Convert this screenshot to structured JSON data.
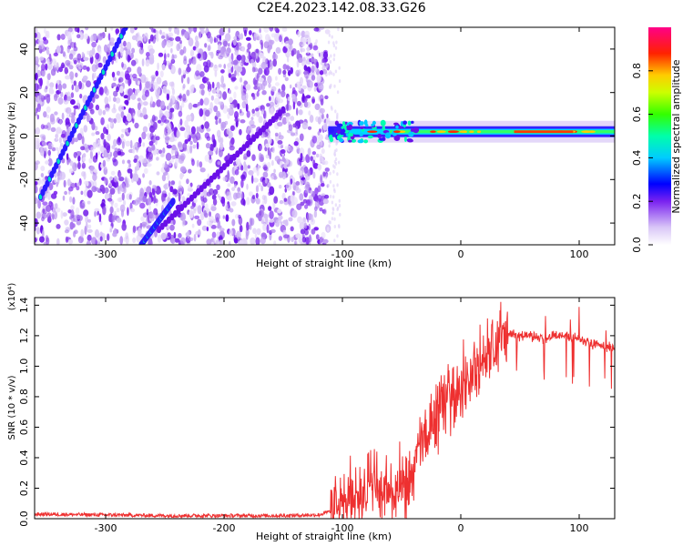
{
  "title": "C2E4.2023.142.08.33.G26",
  "chart_data": [
    {
      "type": "heatmap",
      "xlabel": "Height of straight line (km)",
      "ylabel": "Frequency (Hz)",
      "xlim": [
        -360,
        130
      ],
      "ylim": [
        -50,
        50
      ],
      "x_ticks": [
        -300,
        -200,
        -100,
        0,
        100
      ],
      "y_ticks": [
        -40,
        -20,
        0,
        20,
        40
      ],
      "colorbar": {
        "label": "Normalized spectral amplitude",
        "ticks": [
          0.0,
          0.2,
          0.4,
          0.6,
          0.8
        ],
        "range": [
          0,
          1
        ]
      },
      "features": {
        "noise_region_x": [
          -360,
          -112
        ],
        "steady_band_x": [
          -112,
          130
        ],
        "steady_band_freq": 2,
        "diagonal_traces": [
          {
            "x": [
              -355,
              -283
            ],
            "y": [
              -28,
              50
            ]
          },
          {
            "x": [
              -270,
              -243
            ],
            "y": [
              -50,
              -30
            ]
          },
          {
            "x": [
              -255,
              -150
            ],
            "y": [
              -43,
              12
            ]
          }
        ]
      }
    },
    {
      "type": "line",
      "xlabel": "Height of straight line (km)",
      "ylabel": "SNR (10 * v/v)",
      "y_multiplier": "(x10⁴)",
      "xlim": [
        -360,
        130
      ],
      "ylim": [
        0,
        1.45
      ],
      "x_ticks": [
        -300,
        -200,
        -100,
        0,
        100
      ],
      "y_ticks": [
        "0.0",
        "0.2",
        "0.4",
        "0.6",
        "0.8",
        "1.0",
        "1.2",
        "1.4"
      ],
      "series": [
        {
          "color": "#ee3030",
          "x": [
            -360,
            -300,
            -250,
            -200,
            -150,
            -120,
            -105,
            -95,
            -85,
            -75,
            -65,
            -55,
            -45,
            -40,
            -35,
            -30,
            -25,
            -20,
            -15,
            -10,
            -5,
            0,
            5,
            10,
            15,
            20,
            25,
            30,
            35,
            40,
            50,
            60,
            70,
            80,
            90,
            100,
            110,
            120,
            130
          ],
          "values": [
            0.03,
            0.025,
            0.02,
            0.02,
            0.02,
            0.025,
            0.06,
            0.12,
            0.18,
            0.22,
            0.18,
            0.15,
            0.2,
            0.3,
            0.45,
            0.55,
            0.6,
            0.7,
            0.75,
            0.8,
            0.82,
            0.85,
            0.9,
            0.95,
            1.0,
            1.05,
            1.1,
            1.15,
            1.2,
            1.2,
            1.2,
            1.2,
            1.18,
            1.2,
            1.2,
            1.18,
            1.15,
            1.13,
            1.12
          ]
        }
      ]
    }
  ]
}
